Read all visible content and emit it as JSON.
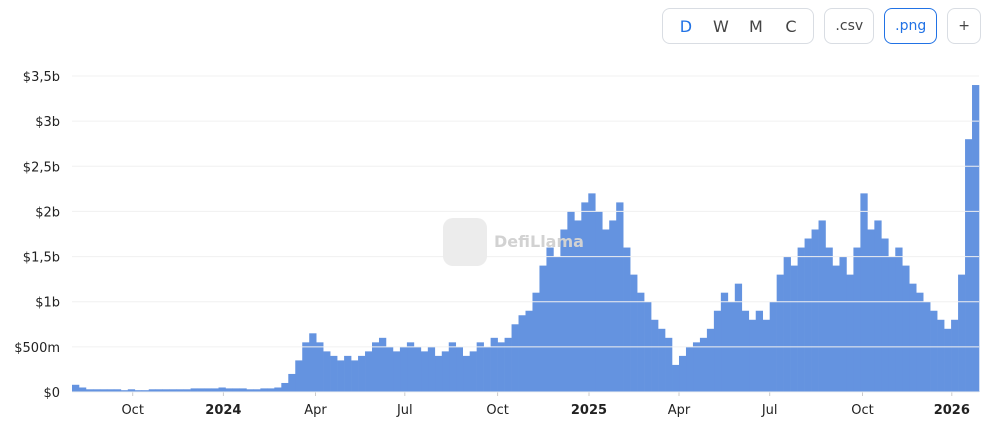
{
  "controls": {
    "periods": [
      "D",
      "W",
      "M",
      "C"
    ],
    "csv": ".csv",
    "png": ".png",
    "add": "+"
  },
  "watermark": "DefiLlama",
  "chart_data": {
    "type": "bar",
    "color": "#6493e0",
    "grid": true,
    "values": [
      0.08,
      0.05,
      0.03,
      0.03,
      0.03,
      0.03,
      0.03,
      0.02,
      0.03,
      0.02,
      0.02,
      0.03,
      0.03,
      0.03,
      0.03,
      0.03,
      0.03,
      0.04,
      0.04,
      0.04,
      0.04,
      0.05,
      0.04,
      0.04,
      0.04,
      0.03,
      0.03,
      0.04,
      0.04,
      0.05,
      0.1,
      0.2,
      0.35,
      0.55,
      0.65,
      0.55,
      0.45,
      0.4,
      0.35,
      0.4,
      0.35,
      0.4,
      0.45,
      0.55,
      0.6,
      0.5,
      0.45,
      0.5,
      0.55,
      0.5,
      0.45,
      0.5,
      0.4,
      0.45,
      0.55,
      0.5,
      0.4,
      0.45,
      0.55,
      0.5,
      0.6,
      0.55,
      0.6,
      0.75,
      0.85,
      0.9,
      1.1,
      1.4,
      1.6,
      1.5,
      1.8,
      2.0,
      1.9,
      2.1,
      2.2,
      2.0,
      1.8,
      1.9,
      2.1,
      1.6,
      1.3,
      1.1,
      1.0,
      0.8,
      0.7,
      0.6,
      0.3,
      0.4,
      0.5,
      0.55,
      0.6,
      0.7,
      0.9,
      1.1,
      1.0,
      1.2,
      0.9,
      0.8,
      0.9,
      0.8,
      1.0,
      1.3,
      1.5,
      1.4,
      1.6,
      1.7,
      1.8,
      1.9,
      1.6,
      1.4,
      1.5,
      1.3,
      1.6,
      2.2,
      1.8,
      1.9,
      1.7,
      1.5,
      1.6,
      1.4,
      1.2,
      1.1,
      1.0,
      0.9,
      0.8,
      0.7,
      0.8,
      1.3,
      2.8,
      3.4
    ],
    "xlim": [
      0,
      130
    ],
    "xticks": [
      {
        "value": 8.7,
        "label": "Oct"
      },
      {
        "value": 21.7,
        "label": "2024"
      },
      {
        "value": 34.9,
        "label": "Apr"
      },
      {
        "value": 47.7,
        "label": "Jul"
      },
      {
        "value": 61,
        "label": "Oct"
      },
      {
        "value": 74.1,
        "label": "2025"
      },
      {
        "value": 87,
        "label": "Apr"
      },
      {
        "value": 100,
        "label": "Jul"
      },
      {
        "value": 113.3,
        "label": "Oct"
      },
      {
        "value": 126.1,
        "label": "2026"
      }
    ],
    "ylim": [
      0,
      3.5
    ],
    "yticks": [
      {
        "value": 0,
        "label": "$0"
      },
      {
        "value": 0.5,
        "label": "$500m"
      },
      {
        "value": 1,
        "label": "$1b"
      },
      {
        "value": 1.5,
        "label": "$1,5b"
      },
      {
        "value": 2,
        "label": "$2b"
      },
      {
        "value": 2.5,
        "label": "$2,5b"
      },
      {
        "value": 3,
        "label": "$3b"
      },
      {
        "value": 3.5,
        "label": "$3,5b"
      }
    ]
  }
}
